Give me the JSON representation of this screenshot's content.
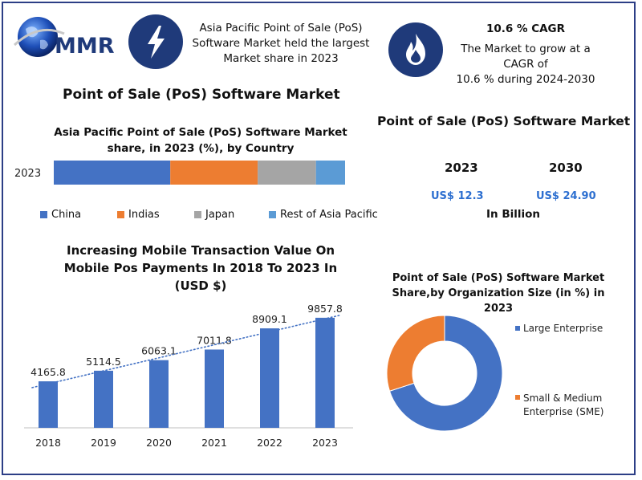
{
  "header": {
    "logo_text": "MMR",
    "apac_text": [
      "Asia Pacific Point of Sale (PoS)",
      "Software Market held the largest",
      "Market share in 2023"
    ],
    "cagr_title": "10.6 % CAGR",
    "cagr_text": [
      "The Market to grow at a CAGR of",
      "10.6 % during 2024-2030"
    ],
    "icons": {
      "left": "lightning-icon",
      "right": "flame-icon",
      "logo": "globe-icon"
    }
  },
  "main_title": "Point of Sale (PoS) Software Market",
  "market_size": {
    "title": "Point of Sale (PoS) Software Market",
    "year_a": "2023",
    "year_b": "2030",
    "value_a": "US$ 12.3",
    "value_b": "US$ 24.90",
    "unit": "In Billion"
  },
  "colors": {
    "blue": "#4472c4",
    "orange": "#ed7d31",
    "gray": "#a5a5a5",
    "lightblue": "#5b9bd5",
    "navy": "#1f3a7a",
    "frame": "#2c3e86"
  },
  "chart_data": [
    {
      "type": "bar",
      "orientation": "horizontal-stacked",
      "title": [
        "Asia Pacific Point of Sale (PoS) Software  Market",
        "share, in 2023 (%), by Country"
      ],
      "categories": [
        "2023"
      ],
      "series": [
        {
          "name": "China",
          "values": [
            40
          ],
          "color": "#4472c4"
        },
        {
          "name": "Indias",
          "values": [
            30
          ],
          "color": "#ed7d31"
        },
        {
          "name": "Japan",
          "values": [
            20
          ],
          "color": "#a5a5a5"
        },
        {
          "name": "Rest of Asia Pacific",
          "values": [
            10
          ],
          "color": "#5b9bd5"
        }
      ],
      "legend_position": "bottom"
    },
    {
      "type": "bar",
      "title": [
        "Increasing Mobile Transaction Value On",
        "Mobile Pos Payments In 2018 To 2023 In",
        "(USD $)"
      ],
      "categories": [
        "2018",
        "2019",
        "2020",
        "2021",
        "2022",
        "2023"
      ],
      "values": [
        4165.8,
        5114.5,
        6063.1,
        7011.8,
        8909.1,
        9857.8
      ],
      "value_labels": [
        "4165.8",
        "5114.5",
        "6063.1",
        "7011.8",
        "8909.1",
        "9857.8"
      ],
      "ylim": [
        0,
        11000
      ],
      "trendline": "linear-dotted",
      "color": "#4472c4"
    },
    {
      "type": "pie",
      "variant": "donut",
      "title": [
        "Point of Sale (PoS) Software  Market",
        "Share,by Organization Size (in %) in",
        "2023"
      ],
      "slices": [
        {
          "label": "Large Enterprise",
          "value": 70,
          "color": "#4472c4"
        },
        {
          "label_lines": [
            "Small & Medium",
            "Enterprise (SME)"
          ],
          "value": 30,
          "color": "#ed7d31"
        }
      ],
      "legend_position": "right"
    }
  ]
}
